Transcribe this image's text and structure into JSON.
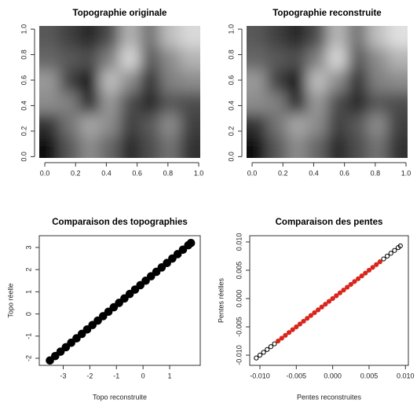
{
  "chart_data": [
    {
      "type": "image",
      "title": "Topographie originale",
      "xlim": [
        -0.036,
        1.01
      ],
      "ylim": [
        -0.01,
        1.025
      ],
      "xticks": [
        {
          "value": 0,
          "label": "0.0"
        },
        0.2,
        0.4,
        0.6,
        0.8,
        {
          "value": 1,
          "label": "1.0"
        }
      ],
      "yticks": [
        {
          "value": 0,
          "label": "0.0"
        },
        0.2,
        0.4,
        0.6,
        0.8,
        {
          "value": 1,
          "label": "1.0"
        }
      ],
      "z": [
        [
          0.35,
          0.25,
          0.15,
          0.3,
          0.7,
          0.45,
          0.75,
          0.85
        ],
        [
          0.4,
          0.35,
          0.3,
          0.5,
          0.85,
          0.35,
          0.55,
          0.7
        ],
        [
          0.6,
          0.25,
          0.05,
          0.75,
          0.55,
          0.2,
          0.5,
          0.55
        ],
        [
          0.55,
          0.5,
          0.15,
          0.6,
          0.3,
          0.15,
          0.35,
          0.3
        ],
        [
          0.2,
          0.45,
          0.65,
          0.55,
          0.25,
          0.35,
          0.55,
          0.25
        ],
        [
          0.05,
          0.35,
          0.55,
          0.4,
          0.15,
          0.3,
          0.45,
          0.2
        ]
      ]
    },
    {
      "type": "image",
      "title": "Topographie reconstruite",
      "xlim": [
        -0.036,
        1.01
      ],
      "ylim": [
        -0.01,
        1.025
      ],
      "xticks": [
        {
          "value": 0,
          "label": "0.0"
        },
        0.2,
        0.4,
        0.6,
        0.8,
        {
          "value": 1,
          "label": "1.0"
        }
      ],
      "yticks": [
        {
          "value": 0,
          "label": "0.0"
        },
        0.2,
        0.4,
        0.6,
        0.8,
        {
          "value": 1,
          "label": "1.0"
        }
      ],
      "z": [
        [
          0.35,
          0.25,
          0.15,
          0.3,
          0.72,
          0.45,
          0.75,
          0.88
        ],
        [
          0.4,
          0.35,
          0.3,
          0.5,
          0.85,
          0.35,
          0.55,
          0.7
        ],
        [
          0.6,
          0.25,
          0.05,
          0.75,
          0.55,
          0.2,
          0.5,
          0.55
        ],
        [
          0.55,
          0.5,
          0.15,
          0.6,
          0.3,
          0.15,
          0.35,
          0.3
        ],
        [
          0.2,
          0.45,
          0.65,
          0.55,
          0.25,
          0.35,
          0.55,
          0.25
        ],
        [
          0.05,
          0.35,
          0.55,
          0.4,
          0.15,
          0.3,
          0.45,
          0.2
        ]
      ]
    },
    {
      "type": "scatter",
      "title": "Comparaison des topographies",
      "x_label": "Topo reconstruite",
      "y_label": "Topo réelle",
      "xlim": [
        -3.9,
        2.15
      ],
      "ylim": [
        -2.32,
        3.53
      ],
      "xticks": [
        -3,
        -2,
        -1,
        0,
        1
      ],
      "yticks": [
        -2,
        -1,
        0,
        1,
        2,
        3
      ],
      "series": [
        {
          "color": "#000000",
          "x": [
            -3.5,
            -3.3,
            -3.1,
            -2.9,
            -2.7,
            -2.5,
            -2.3,
            -2.1,
            -1.9,
            -1.7,
            -1.5,
            -1.3,
            -1.1,
            -0.9,
            -0.7,
            -0.5,
            -0.3,
            -0.1,
            0.1,
            0.3,
            0.5,
            0.7,
            0.9,
            1.1,
            1.3,
            1.5,
            1.7,
            1.8
          ],
          "values": [
            -2.1,
            -1.9,
            -1.7,
            -1.5,
            -1.3,
            -1.1,
            -0.9,
            -0.7,
            -0.5,
            -0.3,
            -0.1,
            0.1,
            0.3,
            0.5,
            0.7,
            0.9,
            1.1,
            1.3,
            1.5,
            1.7,
            1.9,
            2.1,
            2.3,
            2.5,
            2.7,
            2.9,
            3.1,
            3.2
          ]
        }
      ]
    },
    {
      "type": "scatter",
      "title": "Comparaison des pentes",
      "x_label": "Pentes reconstruites",
      "y_label": "Pentes réelles",
      "xlim": [
        -0.0114,
        0.0104
      ],
      "ylim": [
        -0.0118,
        0.0111
      ],
      "xticks": [
        {
          "value": -0.01,
          "label": "-0.010"
        },
        {
          "value": -0.005,
          "label": "-0.005"
        },
        {
          "value": 0,
          "label": "0.000"
        },
        {
          "value": 0.005,
          "label": "0.005"
        },
        {
          "value": 0.01,
          "label": "0.010"
        }
      ],
      "yticks": [
        {
          "value": -0.01,
          "label": "-0.010"
        },
        {
          "value": -0.005,
          "label": "-0.005"
        },
        {
          "value": 0,
          "label": "0.000"
        },
        {
          "value": 0.005,
          "label": "0.005"
        },
        {
          "value": 0.01,
          "label": "0.010"
        }
      ],
      "series": [
        {
          "color": "#000000",
          "x": [
            -0.0105,
            -0.01,
            -0.0095,
            -0.009,
            -0.0085,
            -0.008,
            0.007,
            0.0075,
            0.008,
            0.0085,
            0.009,
            0.0093
          ],
          "values": [
            -0.0105,
            -0.01,
            -0.0095,
            -0.009,
            -0.0085,
            -0.008,
            0.007,
            0.0075,
            0.008,
            0.0085,
            0.009,
            0.0093
          ]
        },
        {
          "color": "#d8261c",
          "x": [
            -0.0075,
            -0.007,
            -0.0065,
            -0.006,
            -0.0055,
            -0.005,
            -0.0045,
            -0.004,
            -0.0035,
            -0.003,
            -0.0025,
            -0.002,
            -0.0015,
            -0.001,
            -0.0005,
            0,
            0.0005,
            0.001,
            0.0015,
            0.002,
            0.0025,
            0.003,
            0.0035,
            0.004,
            0.0045,
            0.005,
            0.0055,
            0.006,
            0.0065
          ],
          "values": [
            -0.0075,
            -0.007,
            -0.0065,
            -0.006,
            -0.0055,
            -0.005,
            -0.0045,
            -0.004,
            -0.0035,
            -0.003,
            -0.0025,
            -0.002,
            -0.0015,
            -0.001,
            -0.0005,
            0,
            0.0005,
            0.001,
            0.0015,
            0.002,
            0.0025,
            0.003,
            0.0035,
            0.004,
            0.0045,
            0.005,
            0.0055,
            0.006,
            0.0065
          ]
        }
      ]
    }
  ]
}
